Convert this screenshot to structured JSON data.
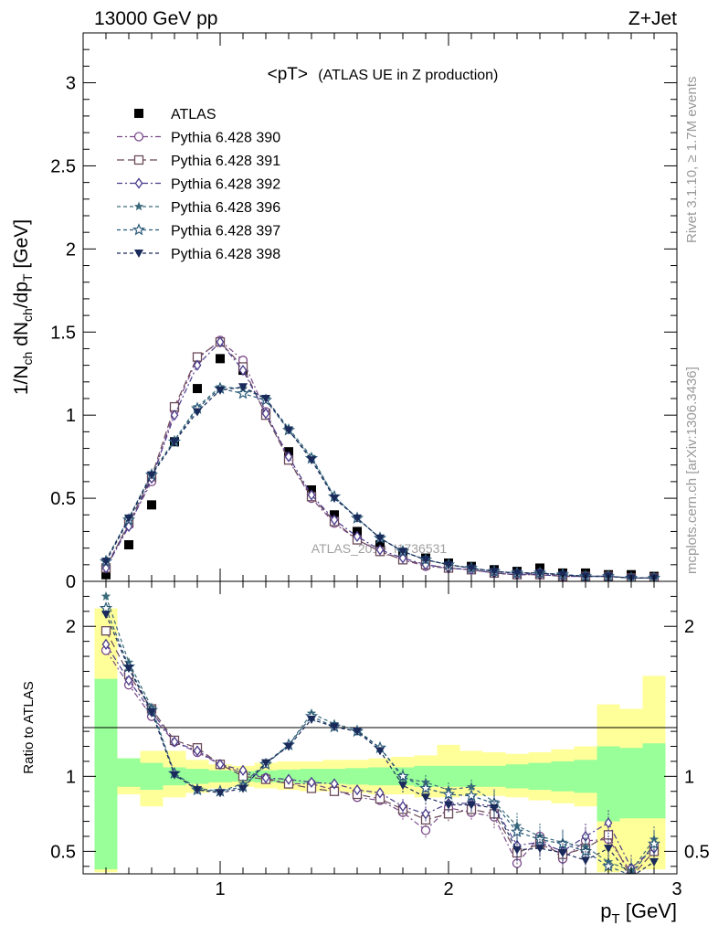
{
  "header": {
    "left": "13000 GeV pp",
    "right": "Z+Jet"
  },
  "side_labels": {
    "rivet": "Rivet 3.1.10, ≥ 1.7M events",
    "mcplots": "mcplots.cern.ch [arXiv:1306.3436]"
  },
  "watermark": "ATLAS_2019_I1736531",
  "chart_data": [
    {
      "type": "scatter",
      "title": "<pT> (ATLAS UE in Z production)",
      "title_main": "<pT>",
      "title_sub": "(ATLAS UE in Z production)",
      "ylabel": "1/N_ch dN_ch/dp_T [GeV]",
      "ylim": [
        0,
        3.3
      ],
      "xlim": [
        0.4,
        3.0
      ],
      "yticks": [
        0,
        0.5,
        1,
        1.5,
        2,
        2.5,
        3
      ],
      "ytick_labels": [
        "0",
        "0.5",
        "1",
        "1.5",
        "2",
        "2.5",
        "3"
      ],
      "legend": {
        "position": "top-left"
      },
      "x": [
        0.5,
        0.6,
        0.7,
        0.8,
        0.9,
        1.0,
        1.1,
        1.2,
        1.3,
        1.4,
        1.5,
        1.6,
        1.7,
        1.8,
        1.9,
        2.0,
        2.1,
        2.2,
        2.3,
        2.4,
        2.5,
        2.6,
        2.7,
        2.8,
        2.9
      ],
      "series": [
        {
          "name": "ATLAS",
          "color": "#000000",
          "marker": "filled-square",
          "dash": "none",
          "values": [
            0.04,
            0.22,
            0.46,
            0.84,
            1.16,
            1.34,
            1.27,
            1.01,
            0.78,
            0.55,
            0.4,
            0.3,
            0.22,
            0.17,
            0.14,
            0.11,
            0.09,
            0.07,
            0.06,
            0.08,
            0.05,
            0.05,
            0.04,
            0.04,
            0.03
          ]
        },
        {
          "name": "Pythia 6.428 390",
          "color": "#7a4a8a",
          "marker": "open-circle",
          "dash": "6,3,2,3",
          "values": [
            0.09,
            0.34,
            0.6,
            1.03,
            1.34,
            1.45,
            1.33,
            1.02,
            0.73,
            0.5,
            0.35,
            0.25,
            0.18,
            0.13,
            0.09,
            0.08,
            0.07,
            0.05,
            0.04,
            0.05,
            0.03,
            0.03,
            0.03,
            0.02,
            0.02
          ]
        },
        {
          "name": "Pythia 6.428 391",
          "color": "#6b4a5a",
          "marker": "open-square",
          "dash": "8,4",
          "values": [
            0.08,
            0.35,
            0.63,
            1.05,
            1.35,
            1.44,
            1.29,
            1.0,
            0.73,
            0.51,
            0.36,
            0.25,
            0.18,
            0.13,
            0.1,
            0.08,
            0.07,
            0.05,
            0.04,
            0.04,
            0.03,
            0.03,
            0.03,
            0.02,
            0.02
          ]
        },
        {
          "name": "Pythia 6.428 392",
          "color": "#4a3a8a",
          "marker": "open-diamond",
          "dash": "6,3,2,3",
          "values": [
            0.08,
            0.33,
            0.62,
            1.0,
            1.3,
            1.44,
            1.27,
            1.01,
            0.75,
            0.52,
            0.37,
            0.27,
            0.19,
            0.14,
            0.1,
            0.08,
            0.07,
            0.05,
            0.04,
            0.04,
            0.03,
            0.03,
            0.03,
            0.02,
            0.02
          ]
        },
        {
          "name": "Pythia 6.428 396",
          "color": "#3a6a7a",
          "marker": "filled-star",
          "dash": "4,3",
          "values": [
            0.13,
            0.38,
            0.65,
            0.85,
            1.05,
            1.17,
            1.16,
            1.1,
            0.92,
            0.75,
            0.51,
            0.38,
            0.26,
            0.18,
            0.13,
            0.1,
            0.08,
            0.06,
            0.05,
            0.05,
            0.04,
            0.03,
            0.03,
            0.02,
            0.02
          ]
        },
        {
          "name": "Pythia 6.428 397",
          "color": "#2a5a7a",
          "marker": "open-star",
          "dash": "4,3",
          "values": [
            0.12,
            0.37,
            0.64,
            0.84,
            1.04,
            1.16,
            1.13,
            1.09,
            0.91,
            0.74,
            0.51,
            0.38,
            0.26,
            0.18,
            0.13,
            0.1,
            0.08,
            0.06,
            0.05,
            0.05,
            0.04,
            0.03,
            0.03,
            0.02,
            0.02
          ]
        },
        {
          "name": "Pythia 6.428 398",
          "color": "#1a2a5a",
          "marker": "filled-triangle-down",
          "dash": "4,3",
          "values": [
            0.12,
            0.38,
            0.64,
            0.84,
            1.02,
            1.15,
            1.17,
            1.1,
            0.91,
            0.73,
            0.5,
            0.38,
            0.26,
            0.18,
            0.13,
            0.1,
            0.08,
            0.06,
            0.05,
            0.05,
            0.04,
            0.03,
            0.03,
            0.02,
            0.02
          ]
        }
      ]
    },
    {
      "type": "scatter",
      "ylabel": "Ratio to ATLAS",
      "xlabel": "p_T [GeV]",
      "ylim": [
        0.35,
        2.3
      ],
      "xlim": [
        0.4,
        3.0
      ],
      "yticks": [
        0.5,
        1,
        2
      ],
      "ytick_labels": [
        "0.5",
        "1",
        "2"
      ],
      "xticks": [
        1,
        2,
        3
      ],
      "xtick_labels": [
        "1",
        "2",
        "3"
      ],
      "reference_line": 1,
      "bands": {
        "x_edges": [
          0.45,
          0.55,
          0.65,
          0.75,
          0.85,
          0.95,
          1.05,
          1.15,
          1.25,
          1.35,
          1.45,
          1.55,
          1.65,
          1.75,
          1.85,
          1.95,
          2.05,
          2.15,
          2.25,
          2.35,
          2.45,
          2.55,
          2.65,
          2.75,
          2.85,
          2.95
        ],
        "inner_color": "#99ff99",
        "outer_color": "#ffff99",
        "inner": [
          [
            0.38,
            1.65
          ],
          [
            0.93,
            1.12
          ],
          [
            0.91,
            1.09
          ],
          [
            0.94,
            1.06
          ],
          [
            0.95,
            1.05
          ],
          [
            0.96,
            1.04
          ],
          [
            0.965,
            1.035
          ],
          [
            0.96,
            1.04
          ],
          [
            0.955,
            1.045
          ],
          [
            0.95,
            1.05
          ],
          [
            0.95,
            1.05
          ],
          [
            0.945,
            1.055
          ],
          [
            0.94,
            1.06
          ],
          [
            0.94,
            1.06
          ],
          [
            0.93,
            1.07
          ],
          [
            0.93,
            1.07
          ],
          [
            0.93,
            1.07
          ],
          [
            0.93,
            1.07
          ],
          [
            0.92,
            1.08
          ],
          [
            0.91,
            1.09
          ],
          [
            0.9,
            1.1
          ],
          [
            0.89,
            1.11
          ],
          [
            0.7,
            1.2
          ],
          [
            0.72,
            1.19
          ],
          [
            0.72,
            1.22
          ]
        ],
        "outer": [
          [
            0.36,
            2.12
          ],
          [
            0.88,
            1.12
          ],
          [
            0.8,
            1.17
          ],
          [
            0.86,
            1.17
          ],
          [
            0.89,
            1.11
          ],
          [
            0.92,
            1.08
          ],
          [
            0.93,
            1.07
          ],
          [
            0.92,
            1.09
          ],
          [
            0.91,
            1.1
          ],
          [
            0.9,
            1.1
          ],
          [
            0.9,
            1.11
          ],
          [
            0.89,
            1.11
          ],
          [
            0.88,
            1.12
          ],
          [
            0.88,
            1.13
          ],
          [
            0.86,
            1.14
          ],
          [
            0.86,
            1.21
          ],
          [
            0.87,
            1.17
          ],
          [
            0.87,
            1.16
          ],
          [
            0.86,
            1.15
          ],
          [
            0.84,
            1.16
          ],
          [
            0.82,
            1.18
          ],
          [
            0.8,
            1.2
          ],
          [
            0.36,
            1.48
          ],
          [
            0.37,
            1.45
          ],
          [
            0.38,
            1.67
          ]
        ]
      },
      "series": [
        {
          "name": "Pythia 6.428 390",
          "values": [
            1.84,
            1.61,
            1.4,
            1.23,
            1.16,
            1.08,
            1.02,
            0.99,
            0.95,
            0.95,
            0.91,
            0.86,
            0.84,
            0.76,
            0.64,
            0.79,
            0.76,
            0.73,
            0.42,
            0.6,
            0.45,
            0.57,
            0.58,
            0.36,
            0.54
          ]
        },
        {
          "name": "Pythia 6.428 391",
          "values": [
            1.97,
            1.68,
            1.45,
            1.24,
            1.19,
            1.08,
            1.0,
            0.98,
            0.95,
            0.92,
            0.9,
            0.88,
            0.85,
            0.78,
            0.71,
            0.75,
            0.78,
            0.75,
            0.49,
            0.55,
            0.48,
            0.52,
            0.61,
            0.33,
            0.5
          ]
        },
        {
          "name": "Pythia 6.428 392",
          "values": [
            1.88,
            1.64,
            1.43,
            1.23,
            1.17,
            1.08,
            1.04,
            0.99,
            0.98,
            0.96,
            0.95,
            0.91,
            0.89,
            0.8,
            0.75,
            0.82,
            0.82,
            0.8,
            0.54,
            0.56,
            0.5,
            0.6,
            0.69,
            0.39,
            0.52
          ]
        },
        {
          "name": "Pythia 6.428 396",
          "values": [
            2.2,
            1.76,
            1.46,
            1.02,
            0.92,
            0.9,
            0.95,
            1.09,
            1.21,
            1.42,
            1.35,
            1.31,
            1.19,
            0.99,
            0.96,
            0.91,
            0.93,
            0.83,
            0.67,
            0.6,
            0.56,
            0.53,
            0.43,
            0.37,
            0.58
          ]
        },
        {
          "name": "Pythia 6.428 397",
          "values": [
            2.12,
            1.73,
            1.44,
            1.02,
            0.91,
            0.9,
            0.93,
            1.08,
            1.21,
            1.4,
            1.33,
            1.3,
            1.19,
            1.0,
            0.92,
            0.88,
            0.87,
            0.82,
            0.63,
            0.58,
            0.55,
            0.5,
            0.4,
            0.34,
            0.55
          ]
        },
        {
          "name": "Pythia 6.428 398",
          "values": [
            2.08,
            1.72,
            1.43,
            1.01,
            0.91,
            0.89,
            0.92,
            1.09,
            1.2,
            1.38,
            1.33,
            1.3,
            1.17,
            0.94,
            0.86,
            0.81,
            0.81,
            0.79,
            0.51,
            0.52,
            0.49,
            0.44,
            0.52,
            0.33,
            0.43
          ]
        }
      ]
    }
  ]
}
